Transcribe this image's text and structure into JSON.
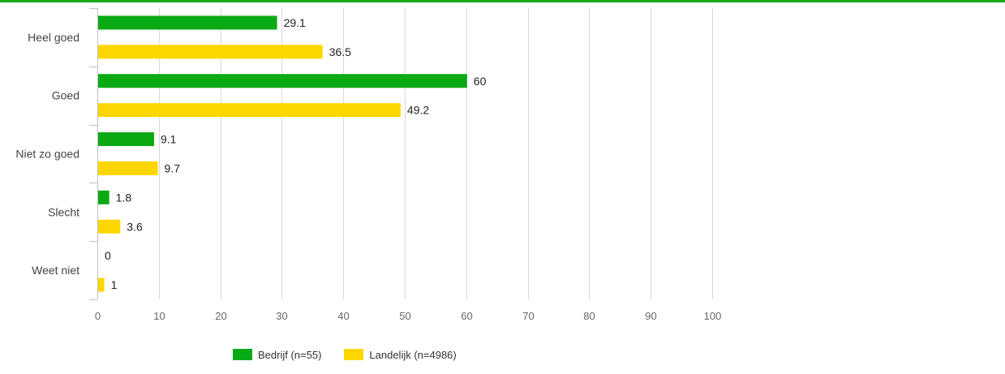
{
  "colors": {
    "accent_line": "#1aa81a",
    "bedrijf": "#0aaa14",
    "landelijk": "#ffd700",
    "gridline": "#d9d9d9",
    "axis_text": "#666666",
    "label_text": "#222222"
  },
  "chart_data": {
    "type": "bar",
    "orientation": "horizontal",
    "categories": [
      "Heel goed",
      "Goed",
      "Niet zo goed",
      "Slecht",
      "Weet niet"
    ],
    "series": [
      {
        "name": "Bedrijf (n=55)",
        "values": [
          29.1,
          60,
          9.1,
          1.8,
          0
        ],
        "labels": [
          "29.1",
          "60",
          "9.1",
          "1.8",
          "0"
        ]
      },
      {
        "name": "Landelijk (n=4986)",
        "values": [
          36.5,
          49.2,
          9.7,
          3.6,
          1
        ],
        "labels": [
          "36.5",
          "49.2",
          "9.7",
          "3.6",
          "1"
        ]
      }
    ],
    "x_ticks": [
      "0",
      "10",
      "20",
      "30",
      "40",
      "50",
      "60",
      "70",
      "80",
      "90",
      "100"
    ],
    "xlim": [
      0,
      100
    ],
    "grid": true,
    "legend_position": "bottom"
  }
}
